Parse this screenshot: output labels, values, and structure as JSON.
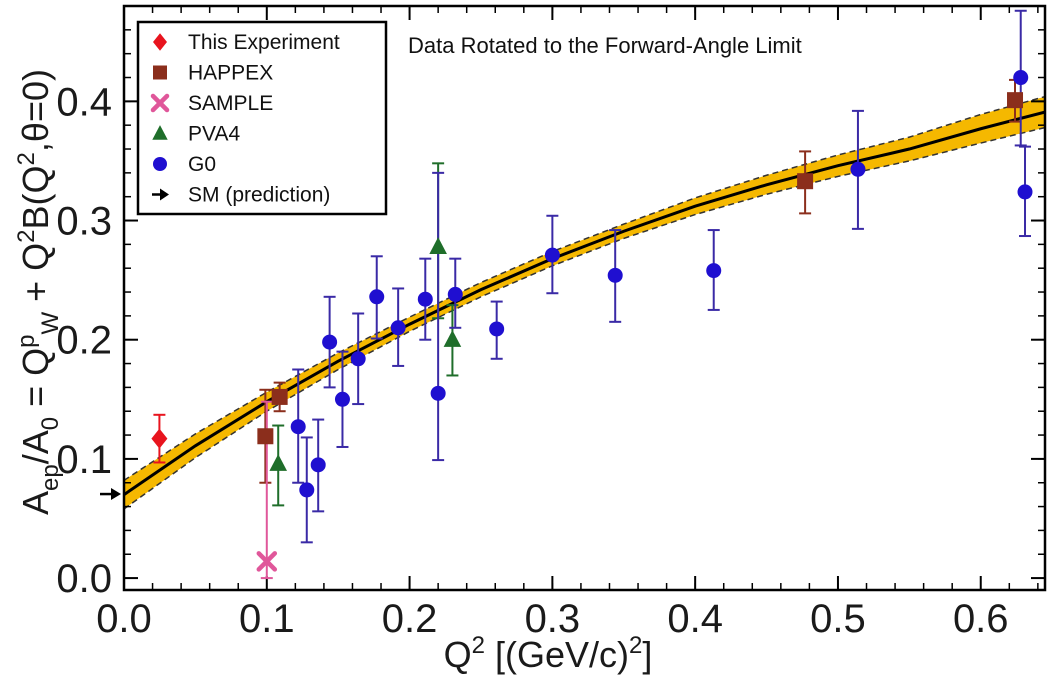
{
  "chart_data": {
    "type": "scatter",
    "title": "Data Rotated to the Forward-Angle Limit",
    "xlabel": {
      "pre": "Q",
      "sup": "2",
      "post": " [(GeV/c)",
      "sup2": "2",
      "end": "]"
    },
    "ylabel": {
      "parts": [
        {
          "t": "A"
        },
        {
          "t": "ep",
          "shift": "sub"
        },
        {
          "t": "/A"
        },
        {
          "t": "0",
          "shift": "sub"
        },
        {
          "t": " = Q"
        },
        {
          "t": "p",
          "shift": "super"
        },
        {
          "t": "W",
          "shift": "sub"
        },
        {
          "t": " + Q"
        },
        {
          "t": "2",
          "shift": "super"
        },
        {
          "t": "B(Q"
        },
        {
          "t": "2",
          "shift": "super"
        },
        {
          "t": ",θ=0)"
        }
      ]
    },
    "xlim": [
      0.0,
      0.645
    ],
    "ylim": [
      -0.01,
      0.48
    ],
    "x_ticks": [
      "0.0",
      "0.1",
      "0.2",
      "0.3",
      "0.4",
      "0.5",
      "0.6"
    ],
    "y_ticks": [
      "0.0",
      "0.1",
      "0.2",
      "0.3",
      "0.4"
    ],
    "legend_position": "top-left",
    "fit": {
      "name": "",
      "x": [
        0.0,
        0.05,
        0.1,
        0.15,
        0.2,
        0.25,
        0.3,
        0.35,
        0.4,
        0.45,
        0.5,
        0.55,
        0.6,
        0.645
      ],
      "y": [
        0.07,
        0.111,
        0.148,
        0.182,
        0.213,
        0.242,
        0.268,
        0.291,
        0.312,
        0.33,
        0.346,
        0.36,
        0.377,
        0.391
      ],
      "band_lower": [
        0.058,
        0.101,
        0.14,
        0.175,
        0.207,
        0.236,
        0.262,
        0.285,
        0.305,
        0.322,
        0.337,
        0.35,
        0.365,
        0.378
      ],
      "band_upper": [
        0.082,
        0.121,
        0.156,
        0.189,
        0.219,
        0.248,
        0.274,
        0.297,
        0.319,
        0.338,
        0.355,
        0.37,
        0.389,
        0.404
      ],
      "line_color": "#000000",
      "band_color": "#f5b800"
    },
    "sm_prediction": {
      "name": "SM (prediction)",
      "y": 0.0705,
      "color": "#000000"
    },
    "series": [
      {
        "name": "This Experiment",
        "marker": "diamond",
        "color": "#e8141e",
        "points": [
          {
            "x": 0.0248,
            "y": 0.117,
            "lo": 0.097,
            "hi": 0.137
          }
        ]
      },
      {
        "name": "HAPPEX",
        "marker": "square",
        "color": "#8b2e1c",
        "points": [
          {
            "x": 0.099,
            "y": 0.119,
            "lo": 0.08,
            "hi": 0.158
          },
          {
            "x": 0.109,
            "y": 0.152,
            "lo": 0.14,
            "hi": 0.164
          },
          {
            "x": 0.477,
            "y": 0.333,
            "lo": 0.306,
            "hi": 0.358
          },
          {
            "x": 0.624,
            "y": 0.401,
            "lo": 0.383,
            "hi": 0.418
          }
        ]
      },
      {
        "name": "SAMPLE",
        "marker": "cross",
        "color": "#e0579a",
        "points": [
          {
            "x": 0.1,
            "y": 0.014,
            "lo": 0.0,
            "hi": 0.148
          }
        ]
      },
      {
        "name": "PVA4",
        "marker": "triangle",
        "color": "#1f6e2a",
        "points": [
          {
            "x": 0.108,
            "y": 0.096,
            "lo": 0.061,
            "hi": 0.128
          },
          {
            "x": 0.22,
            "y": 0.278,
            "lo": 0.218,
            "hi": 0.348
          },
          {
            "x": 0.23,
            "y": 0.2,
            "lo": 0.17,
            "hi": 0.229
          }
        ]
      },
      {
        "name": "G0",
        "marker": "circle",
        "color": "#1f0fd0",
        "error_color": "#3a2aa6",
        "points": [
          {
            "x": 0.122,
            "y": 0.127,
            "lo": 0.08,
            "hi": 0.175
          },
          {
            "x": 0.128,
            "y": 0.074,
            "lo": 0.03,
            "hi": 0.118
          },
          {
            "x": 0.136,
            "y": 0.095,
            "lo": 0.056,
            "hi": 0.133
          },
          {
            "x": 0.144,
            "y": 0.198,
            "lo": 0.16,
            "hi": 0.236
          },
          {
            "x": 0.153,
            "y": 0.15,
            "lo": 0.11,
            "hi": 0.19
          },
          {
            "x": 0.164,
            "y": 0.184,
            "lo": 0.146,
            "hi": 0.222
          },
          {
            "x": 0.177,
            "y": 0.236,
            "lo": 0.201,
            "hi": 0.27
          },
          {
            "x": 0.192,
            "y": 0.21,
            "lo": 0.178,
            "hi": 0.243
          },
          {
            "x": 0.211,
            "y": 0.234,
            "lo": 0.2,
            "hi": 0.268
          },
          {
            "x": 0.22,
            "y": 0.155,
            "lo": 0.099,
            "hi": 0.34
          },
          {
            "x": 0.232,
            "y": 0.238,
            "lo": 0.21,
            "hi": 0.268
          },
          {
            "x": 0.261,
            "y": 0.209,
            "lo": 0.184,
            "hi": 0.232
          },
          {
            "x": 0.3,
            "y": 0.271,
            "lo": 0.239,
            "hi": 0.304
          },
          {
            "x": 0.344,
            "y": 0.254,
            "lo": 0.215,
            "hi": 0.292
          },
          {
            "x": 0.413,
            "y": 0.258,
            "lo": 0.225,
            "hi": 0.292
          },
          {
            "x": 0.514,
            "y": 0.343,
            "lo": 0.293,
            "hi": 0.392
          },
          {
            "x": 0.628,
            "y": 0.42,
            "lo": 0.363,
            "hi": 0.476
          },
          {
            "x": 0.631,
            "y": 0.324,
            "lo": 0.287,
            "hi": 0.362
          }
        ]
      }
    ]
  }
}
